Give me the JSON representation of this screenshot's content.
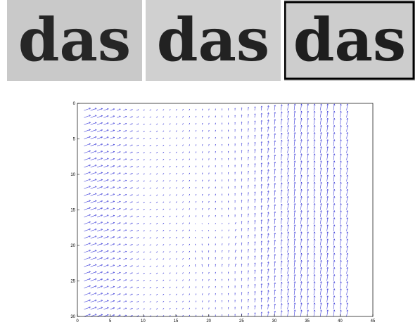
{
  "panels": [
    {
      "word": "das",
      "background": "#c9c9c9",
      "ink": "#262626",
      "framed": false
    },
    {
      "word": "das",
      "background": "#d0d0d0",
      "ink": "#222222",
      "framed": false
    },
    {
      "word": "das",
      "background": "#cdcdcd",
      "ink": "#1e1e1e",
      "framed": true
    }
  ],
  "chart_data": {
    "type": "quiver",
    "xlim": [
      0,
      45
    ],
    "ylim": [
      0,
      30
    ],
    "y_axis_direction": "down (0 at top)",
    "xticks": [
      "0",
      "5",
      "10",
      "15",
      "20",
      "25",
      "30",
      "35",
      "40",
      "45"
    ],
    "yticks": [
      "0",
      "5",
      "10",
      "15",
      "20",
      "25",
      "30"
    ],
    "grid": {
      "x_start": 1,
      "x_end": 41,
      "x_step": 1,
      "y_start": 1,
      "y_end": 30,
      "y_step": 1
    },
    "field": {
      "left_region_direction": "right-up",
      "center_region": "near-zero",
      "right_region_direction": "up"
    },
    "arrow_color": "#2c2cd6",
    "grid_lines": false,
    "legend": "none"
  }
}
